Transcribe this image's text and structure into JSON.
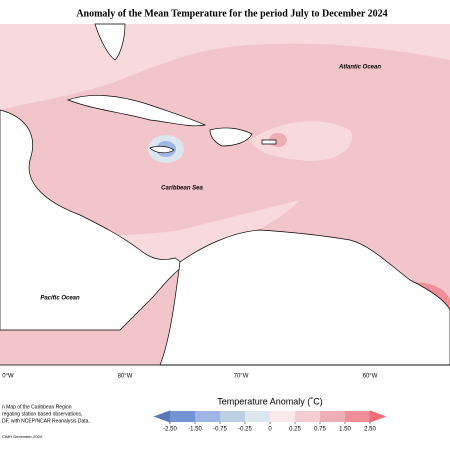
{
  "title": "Anomaly of the Mean Temperature for the period July to December 2024",
  "labels": {
    "atlantic": "Atlantic Ocean",
    "caribbean": "Caribbean Sea",
    "pacific": "Pacific Ocean"
  },
  "longitudes": [
    "0°W",
    "80°W",
    "70°W",
    "60°W"
  ],
  "legend": {
    "title": "Temperature Anomaly (˚C)",
    "ticks": [
      {
        "value": -2.5,
        "label": "-2.50"
      },
      {
        "value": -1.5,
        "label": "-1.50"
      },
      {
        "value": -0.75,
        "label": "-0.75"
      },
      {
        "value": -0.25,
        "label": "-0.25"
      },
      0,
      0.25,
      0.75,
      {
        "value": 1.5,
        "label": "1.50"
      },
      {
        "value": 2.5,
        "label": "2.50"
      }
    ],
    "colors": [
      "#5b79b9",
      "#7393d2",
      "#9fb5e6",
      "#bccfe6",
      "#dbe6ee",
      "#fbe8ea",
      "#f6cdd2",
      "#eeaeb5",
      "#f08f98",
      "#f36b77"
    ]
  },
  "footnote": [
    "n Map of the Caribbean Region",
    "regating station based observations,",
    "DF, with NCEP/NCAR Reanalysis Data."
  ],
  "credit": "CIMH December-2024"
}
